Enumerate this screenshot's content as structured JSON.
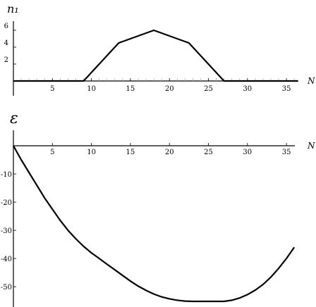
{
  "chart_data": [
    {
      "type": "line",
      "ylabel": "n₁",
      "xlabel": "N",
      "xlim": [
        0,
        36.5
      ],
      "ylim": [
        0,
        6.5
      ],
      "xticks": [
        "5",
        "10",
        "15",
        "20",
        "25",
        "30",
        "35"
      ],
      "yticks": [
        "2",
        "4",
        "6"
      ],
      "x": [
        0,
        9,
        13.5,
        18,
        22.5,
        27,
        36.5
      ],
      "y": [
        0,
        0,
        4.5,
        6,
        4.5,
        0,
        0
      ]
    },
    {
      "type": "line",
      "ylabel": "ε",
      "xlabel": "N",
      "xlim": [
        0,
        36.5
      ],
      "ylim": [
        -57,
        0
      ],
      "xticks": [
        "5",
        "10",
        "15",
        "20",
        "25",
        "30",
        "35"
      ],
      "yticks": [
        "-10",
        "-20",
        "-30",
        "-40",
        "-50"
      ],
      "x": [
        0,
        1,
        2,
        3,
        4,
        5,
        6,
        7,
        8,
        9,
        10,
        11,
        12,
        13,
        14,
        15,
        16,
        17,
        18,
        19,
        20,
        21,
        22,
        23,
        24,
        25,
        26,
        27,
        28,
        29,
        30,
        31,
        32,
        33,
        34,
        35,
        36
      ],
      "y": [
        0,
        -5,
        -9.5,
        -14,
        -18.5,
        -22.5,
        -26.5,
        -30,
        -33,
        -35.7,
        -38,
        -40,
        -42,
        -44,
        -46,
        -48,
        -49.8,
        -51.3,
        -52.6,
        -53.6,
        -54.3,
        -54.8,
        -55.1,
        -55.2,
        -55.2,
        -55.2,
        -55.2,
        -55.2,
        -54.8,
        -54,
        -52.8,
        -51.2,
        -49.2,
        -46.6,
        -43.5,
        -40,
        -36
      ]
    }
  ]
}
